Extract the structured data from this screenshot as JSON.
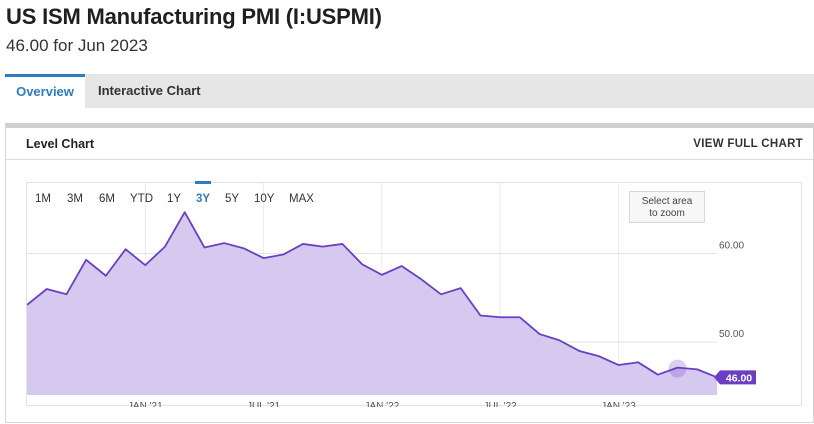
{
  "header": {
    "title": "US ISM Manufacturing PMI (I:USPMI)",
    "subtitle": "46.00 for Jun 2023"
  },
  "tabs": [
    {
      "label": "Overview",
      "active": true
    },
    {
      "label": "Interactive Chart",
      "active": false
    }
  ],
  "panel": {
    "title": "Level Chart",
    "full_chart_label": "VIEW FULL CHART"
  },
  "range_buttons": [
    "1M",
    "3M",
    "6M",
    "YTD",
    "1Y",
    "3Y",
    "5Y",
    "10Y",
    "MAX"
  ],
  "active_range": "3Y",
  "zoom_hint": {
    "line1": "Select area",
    "line2": "to zoom"
  },
  "colors": {
    "line": "#6a3fc4",
    "area": "#d6c9ef",
    "badge": "#6a3fc4",
    "accent": "#2e7cc0"
  },
  "chart_data": {
    "type": "area",
    "series_name": "",
    "x": [
      "2020-07",
      "2020-08",
      "2020-09",
      "2020-10",
      "2020-11",
      "2020-12",
      "2021-01",
      "2021-02",
      "2021-03",
      "2021-04",
      "2021-05",
      "2021-06",
      "2021-07",
      "2021-08",
      "2021-09",
      "2021-10",
      "2021-11",
      "2021-12",
      "2022-01",
      "2022-02",
      "2022-03",
      "2022-04",
      "2022-05",
      "2022-06",
      "2022-07",
      "2022-08",
      "2022-09",
      "2022-10",
      "2022-11",
      "2022-12",
      "2023-01",
      "2023-02",
      "2023-03",
      "2023-04",
      "2023-05",
      "2023-06"
    ],
    "values": [
      54.2,
      56.0,
      55.4,
      59.3,
      57.5,
      60.5,
      58.7,
      60.8,
      64.7,
      60.7,
      61.2,
      60.6,
      59.5,
      59.9,
      61.1,
      60.8,
      61.1,
      58.8,
      57.6,
      58.6,
      57.1,
      55.4,
      56.1,
      53.0,
      52.8,
      52.8,
      50.9,
      50.2,
      49.0,
      48.4,
      47.4,
      47.7,
      46.3,
      47.1,
      46.9,
      46.0
    ],
    "x_tick_labels": [
      {
        "label": "JAN '21",
        "x": "2021-01"
      },
      {
        "label": "JUL '21",
        "x": "2021-07"
      },
      {
        "label": "JAN '22",
        "x": "2022-01"
      },
      {
        "label": "JUL '22",
        "x": "2022-07"
      },
      {
        "label": "JAN '23",
        "x": "2023-01"
      }
    ],
    "y_ticks": [
      50.0,
      60.0
    ],
    "y_tick_labels": [
      "50.00",
      "60.00"
    ],
    "ylim": [
      44,
      68
    ],
    "last_value_label": "46.00",
    "grid": true
  }
}
